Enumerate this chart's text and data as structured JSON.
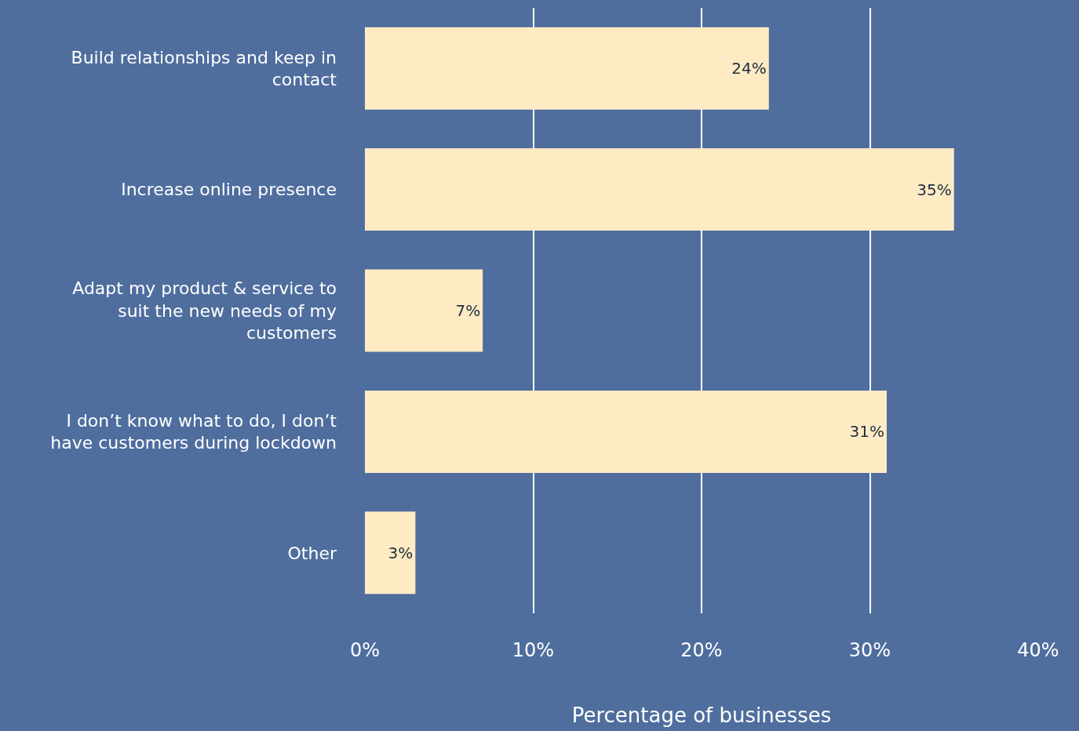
{
  "chart_data": {
    "type": "bar",
    "orientation": "horizontal",
    "xlabel": "Percentage of businesses",
    "categories": [
      "Build relationships and keep in contact",
      "Increase online presence",
      "Adapt my product & service to suit the new needs of my customers",
      "I don’t know what to do, I don’t have customers during lockdown",
      "Other"
    ],
    "values": [
      24,
      35,
      7,
      31,
      3
    ],
    "color": "#feebc4",
    "value_labels": [
      "24%",
      "35%",
      "7%",
      "31%",
      "3%"
    ],
    "xlim": [
      0,
      40
    ],
    "xticks": [
      {
        "value": 0,
        "label": "0%"
      },
      {
        "value": 10,
        "label": "10%"
      },
      {
        "value": 20,
        "label": "20%"
      },
      {
        "value": 30,
        "label": "30%"
      },
      {
        "value": 40,
        "label": "40%"
      }
    ],
    "grid": "x",
    "legend": false
  }
}
